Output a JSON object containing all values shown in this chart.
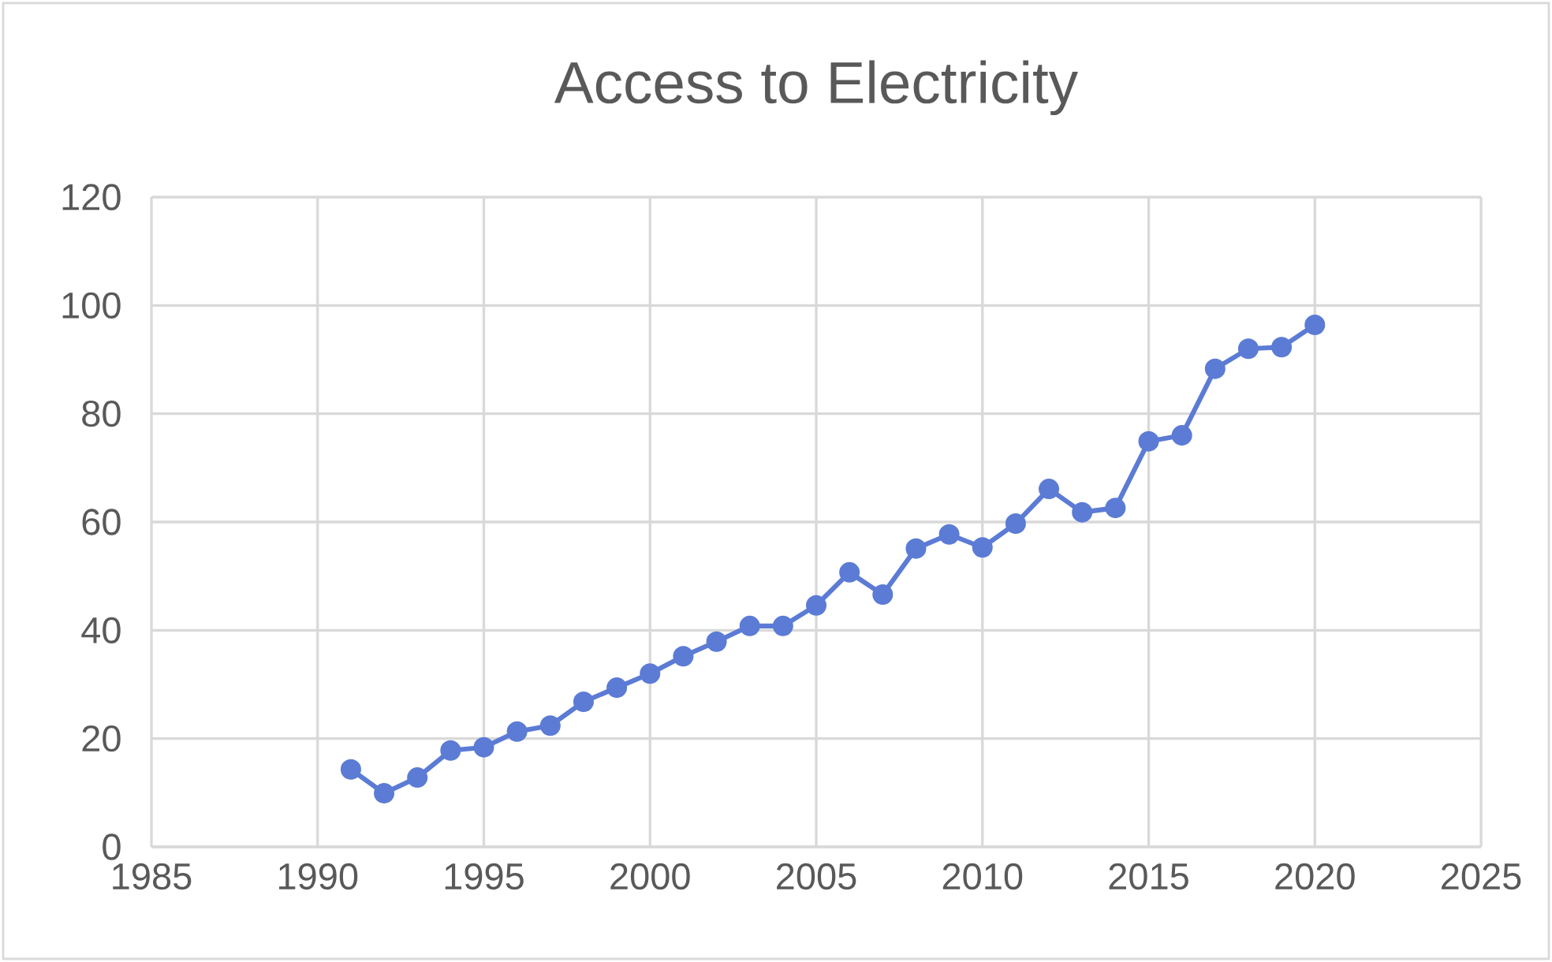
{
  "chart_data": {
    "type": "line",
    "title": "Access to Electricity",
    "x": [
      1991,
      1992,
      1993,
      1994,
      1995,
      1996,
      1997,
      1998,
      1999,
      2000,
      2001,
      2002,
      2003,
      2004,
      2005,
      2006,
      2007,
      2008,
      2009,
      2010,
      2011,
      2012,
      2013,
      2014,
      2015,
      2016,
      2017,
      2018,
      2019,
      2020
    ],
    "series": [
      {
        "color": "#5b7bd5",
        "values": [
          14.3,
          9.9,
          12.8,
          17.8,
          18.4,
          21.3,
          22.4,
          26.8,
          29.4,
          32.0,
          35.2,
          37.9,
          40.8,
          40.8,
          44.6,
          50.7,
          46.6,
          55.1,
          57.7,
          55.3,
          59.7,
          66.1,
          61.8,
          62.6,
          74.9,
          76.0,
          88.3,
          92.0,
          92.3,
          96.4
        ]
      }
    ],
    "xlim": [
      1985,
      2025
    ],
    "xticks": [
      1985,
      1990,
      1995,
      2000,
      2005,
      2010,
      2015,
      2020,
      2025
    ],
    "ylim": [
      0,
      120
    ],
    "yticks": [
      0,
      20,
      40,
      60,
      80,
      100,
      120
    ],
    "grid": true,
    "marker": "circle",
    "line_style": "solid"
  }
}
